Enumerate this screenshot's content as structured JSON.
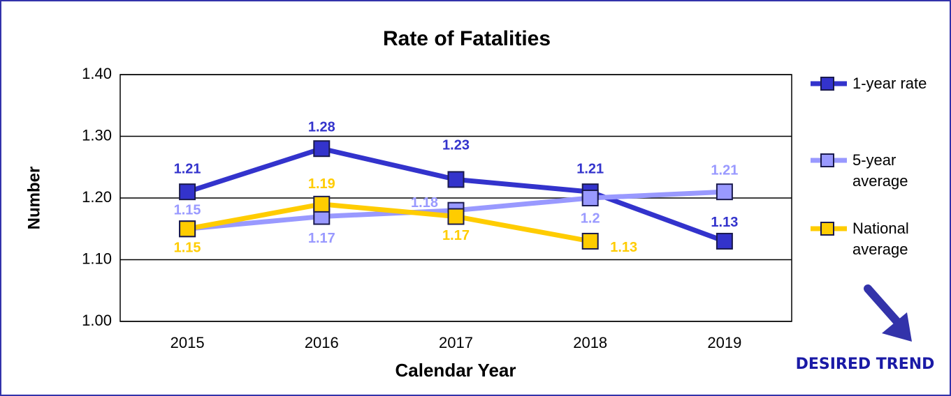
{
  "chart_data": {
    "type": "line",
    "title": "Rate of Fatalities",
    "x_label": "Calendar Year",
    "y_label": "Number",
    "categories": [
      "2015",
      "2016",
      "2017",
      "2018",
      "2019"
    ],
    "series": [
      {
        "name": "1-year rate",
        "color": "#3333cc",
        "values": [
          1.21,
          1.28,
          1.23,
          1.21,
          1.13
        ]
      },
      {
        "name": "5-year average",
        "color": "#9999ff",
        "values": [
          1.15,
          1.17,
          1.18,
          1.2,
          1.21
        ]
      },
      {
        "name": "National average",
        "color": "#ffcc00",
        "values": [
          1.15,
          1.19,
          1.17,
          1.13,
          null
        ]
      }
    ],
    "ylim": [
      1.0,
      1.4
    ],
    "yticks": [
      {
        "value": 1.0,
        "label": "1.00"
      },
      {
        "value": 1.1,
        "label": "1.10"
      },
      {
        "value": 1.2,
        "label": "1.20"
      },
      {
        "value": 1.3,
        "label": "1.30"
      },
      {
        "value": 1.4,
        "label": "1.40"
      }
    ],
    "grid": true,
    "legend": "right",
    "annotation": "DESIRED TREND"
  }
}
